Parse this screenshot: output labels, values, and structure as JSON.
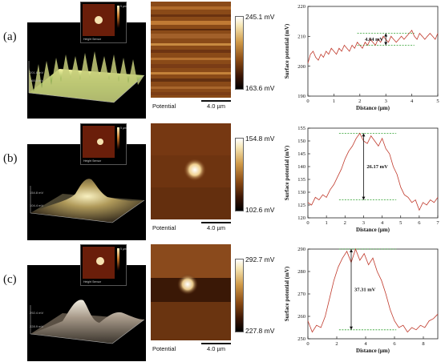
{
  "rows": [
    {
      "label": "(a)",
      "potential_label": "Potential",
      "scale_bar": "4.0 µm",
      "cbar_top": "245.1 mV",
      "cbar_bottom": "163.6 mV",
      "annotation": "4.04 mV",
      "axis_3d_a": "201.8 mV",
      "axis_3d_b": "165.5 mV",
      "inset_scale": "5 µm",
      "inset_caption": "Height Sensor"
    },
    {
      "label": "(b)",
      "potential_label": "Potential",
      "scale_bar": "4.0 µm",
      "cbar_top": "154.8 mV",
      "cbar_bottom": "102.6 mV",
      "annotation": "26.17 mV",
      "axis_3d_a": "154.8 mV",
      "axis_3d_b": "104.4 mV",
      "inset_scale": "5 µm",
      "inset_caption": "Height Sensor"
    },
    {
      "label": "(c)",
      "potential_label": "Potential",
      "scale_bar": "4.0 µm",
      "cbar_top": "292.7 mV",
      "cbar_bottom": "227.8 mV",
      "annotation": "37.31 mV",
      "axis_3d_a": "292.4 mV",
      "axis_3d_b": "228.9 mV",
      "inset_scale": "5 µm",
      "inset_caption": "Height Sensor"
    }
  ],
  "colors": {
    "line": "#c0392b",
    "dash": "#2ca02c",
    "arrow": "#111111"
  },
  "chart_data": [
    {
      "type": "line",
      "title": "",
      "xlabel": "Distance (µm)",
      "ylabel": "Surface potential (mV)",
      "xlim": [
        0,
        5
      ],
      "ylim": [
        190,
        220
      ],
      "xticks": [
        0,
        1,
        2,
        3,
        4,
        5
      ],
      "yticks": [
        190,
        200,
        210,
        220
      ],
      "series": [
        {
          "x": [
            0,
            0.1,
            0.2,
            0.3,
            0.4,
            0.5,
            0.6,
            0.7,
            0.8,
            0.9,
            1.0,
            1.1,
            1.2,
            1.3,
            1.4,
            1.5,
            1.6,
            1.7,
            1.8,
            1.9,
            2.0,
            2.1,
            2.2,
            2.3,
            2.4,
            2.5,
            2.6,
            2.7,
            2.8,
            2.9,
            3.0,
            3.1,
            3.2,
            3.3,
            3.4,
            3.5,
            3.6,
            3.7,
            3.8,
            3.9,
            4.0,
            4.1,
            4.2,
            4.3,
            4.4,
            4.5,
            4.6,
            4.7,
            4.8,
            4.9,
            5.0
          ],
          "y": [
            201,
            204,
            205,
            203,
            202,
            204,
            203,
            205,
            204,
            206,
            205,
            204,
            206,
            205,
            207,
            206,
            205,
            207,
            206,
            208,
            207,
            206,
            208,
            207,
            209,
            208,
            207,
            209,
            208,
            210,
            209,
            208,
            210,
            209,
            208,
            209,
            210,
            209,
            210,
            211,
            212,
            210,
            209,
            211,
            210,
            209,
            210,
            211,
            210,
            209,
            211
          ]
        }
      ],
      "guides": [
        211,
        207
      ],
      "annotation_x": 3.0
    },
    {
      "type": "line",
      "title": "",
      "xlabel": "Distance (µm)",
      "ylabel": "Surface potential (mV)",
      "xlim": [
        0,
        7
      ],
      "ylim": [
        120,
        155
      ],
      "xticks": [
        0,
        1,
        2,
        3,
        4,
        5,
        6,
        7
      ],
      "yticks": [
        120,
        125,
        130,
        135,
        140,
        145,
        150,
        155
      ],
      "series": [
        {
          "x": [
            0,
            0.2,
            0.4,
            0.6,
            0.8,
            1.0,
            1.2,
            1.4,
            1.6,
            1.8,
            2.0,
            2.2,
            2.4,
            2.6,
            2.8,
            3.0,
            3.2,
            3.4,
            3.6,
            3.8,
            4.0,
            4.2,
            4.4,
            4.6,
            4.8,
            5.0,
            5.2,
            5.4,
            5.6,
            5.8,
            6.0,
            6.2,
            6.4,
            6.6,
            6.8,
            7.0
          ],
          "y": [
            126,
            125,
            128,
            127,
            129,
            128,
            131,
            133,
            136,
            139,
            143,
            146,
            148,
            151,
            153,
            150,
            149,
            152,
            150,
            148,
            151,
            147,
            145,
            140,
            137,
            132,
            129,
            128,
            126,
            127,
            123,
            126,
            125,
            127,
            126,
            128
          ]
        }
      ],
      "guides": [
        153,
        127
      ],
      "annotation_x": 3.0
    },
    {
      "type": "line",
      "title": "",
      "xlabel": "Distance (µm)",
      "ylabel": "Surface potential (mV)",
      "xlim": [
        0,
        9
      ],
      "ylim": [
        250,
        290
      ],
      "xticks": [
        0,
        2,
        4,
        6,
        8
      ],
      "yticks": [
        250,
        260,
        270,
        280,
        290
      ],
      "series": [
        {
          "x": [
            0,
            0.3,
            0.6,
            0.9,
            1.2,
            1.5,
            1.8,
            2.1,
            2.4,
            2.7,
            3.0,
            3.3,
            3.6,
            3.9,
            4.2,
            4.5,
            4.8,
            5.1,
            5.4,
            5.7,
            6.0,
            6.3,
            6.6,
            6.9,
            7.2,
            7.5,
            7.8,
            8.1,
            8.4,
            8.7,
            9.0
          ],
          "y": [
            258,
            253,
            256,
            255,
            260,
            268,
            276,
            282,
            286,
            289,
            284,
            290,
            285,
            288,
            283,
            286,
            280,
            276,
            270,
            263,
            258,
            255,
            256,
            253,
            255,
            254,
            256,
            255,
            258,
            259,
            261
          ]
        }
      ],
      "guides": [
        290,
        254
      ],
      "annotation_x": 3.0
    }
  ]
}
